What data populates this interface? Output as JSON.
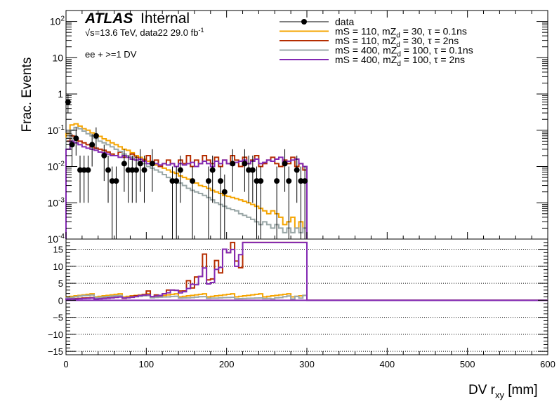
{
  "chart_data": {
    "type": "line",
    "label_atlas": "ATLAS",
    "label_internal": "Internal",
    "lumi_sqrt": "√s",
    "lumi_text": "=13.6 TeV, data22 29.0 fb",
    "lumi_exp": "-1",
    "selection": "ee + >=1 DV",
    "ylabel": "Frac. Events",
    "xlabel_main": "DV r",
    "xlabel_sub": "xy",
    "xlabel_unit": " [mm]",
    "xlim": [
      0,
      600
    ],
    "ylim_log": [
      0.0001,
      200
    ],
    "ratio_ylim": [
      -16,
      18
    ],
    "x_ticks": [
      "0",
      "100",
      "200",
      "300",
      "400",
      "500",
      "600"
    ],
    "y_ticks": [
      {
        "base": "10",
        "exp": "2"
      },
      {
        "base": "10",
        "exp": ""
      },
      {
        "base": "1",
        "exp": ""
      },
      {
        "base": "10",
        "exp": "-1"
      },
      {
        "base": "10",
        "exp": "-2"
      },
      {
        "base": "10",
        "exp": "-3"
      },
      {
        "base": "10",
        "exp": "-4"
      }
    ],
    "ratio_ticks": [
      "15",
      "10",
      "5",
      "0",
      "−5",
      "−10",
      "−15"
    ],
    "legend": [
      {
        "pre": "data",
        "sub": "",
        "post": "",
        "color": "#000000",
        "marker": "point"
      },
      {
        "pre": "mS = 110, mZ",
        "sub": "d",
        "post": " = 30, τ = 0.1ns",
        "color": "#f5a400",
        "marker": "line"
      },
      {
        "pre": "mS = 110, mZ",
        "sub": "d",
        "post": " = 30, τ = 2ns",
        "color": "#b52d00",
        "marker": "line"
      },
      {
        "pre": "mS = 400, mZ",
        "sub": "d",
        "post": " = 100, τ = 0.1ns",
        "color": "#9aa7a7",
        "marker": "line"
      },
      {
        "pre": "mS = 400, mZ",
        "sub": "d",
        "post": " = 100, τ = 2ns",
        "color": "#832ab3",
        "marker": "line"
      }
    ],
    "bin_width": 5,
    "data_points": [
      {
        "x": 2.5,
        "y": 0.6,
        "lo": 0.3,
        "hi": 1.0
      },
      {
        "x": 7.5,
        "y": 0.04,
        "lo": 0.01,
        "hi": 0.08
      },
      {
        "x": 12.5,
        "y": 0.06,
        "lo": 0.02,
        "hi": 0.12
      },
      {
        "x": 17.5,
        "y": 0.008,
        "lo": 0.001,
        "hi": 0.02
      },
      {
        "x": 22.5,
        "y": 0.008,
        "lo": 0.001,
        "hi": 0.02
      },
      {
        "x": 27.5,
        "y": 0.008,
        "lo": 0.001,
        "hi": 0.02
      },
      {
        "x": 32.5,
        "y": 0.04,
        "lo": 0.01,
        "hi": 0.08
      },
      {
        "x": 37.5,
        "y": 0.07,
        "lo": 0.03,
        "hi": 0.12
      },
      {
        "x": 47.5,
        "y": 0.02,
        "lo": 0.004,
        "hi": 0.04
      },
      {
        "x": 52.5,
        "y": 0.008,
        "lo": 0.001,
        "hi": 0.02
      },
      {
        "x": 57.5,
        "y": 0.004,
        "lo": 0.0001,
        "hi": 0.01
      },
      {
        "x": 62.5,
        "y": 0.004,
        "lo": 0.0001,
        "hi": 0.01
      },
      {
        "x": 72.5,
        "y": 0.012,
        "lo": 0.002,
        "hi": 0.03
      },
      {
        "x": 77.5,
        "y": 0.008,
        "lo": 0.001,
        "hi": 0.02
      },
      {
        "x": 82.5,
        "y": 0.008,
        "lo": 0.001,
        "hi": 0.02
      },
      {
        "x": 87.5,
        "y": 0.008,
        "lo": 0.001,
        "hi": 0.02
      },
      {
        "x": 92.5,
        "y": 0.012,
        "lo": 0.002,
        "hi": 0.03
      },
      {
        "x": 97.5,
        "y": 0.008,
        "lo": 0.001,
        "hi": 0.02
      },
      {
        "x": 107.5,
        "y": 0.012,
        "lo": 0.002,
        "hi": 0.03
      },
      {
        "x": 132.5,
        "y": 0.004,
        "lo": 0.0001,
        "hi": 0.01
      },
      {
        "x": 137.5,
        "y": 0.004,
        "lo": 0.0001,
        "hi": 0.01
      },
      {
        "x": 142.5,
        "y": 0.008,
        "lo": 0.001,
        "hi": 0.02
      },
      {
        "x": 157.5,
        "y": 0.004,
        "lo": 0.0001,
        "hi": 0.01
      },
      {
        "x": 177.5,
        "y": 0.004,
        "lo": 0.0001,
        "hi": 0.01
      },
      {
        "x": 182.5,
        "y": 0.008,
        "lo": 0.001,
        "hi": 0.02
      },
      {
        "x": 192.5,
        "y": 0.004,
        "lo": 0.0001,
        "hi": 0.01
      },
      {
        "x": 197.5,
        "y": 0.002,
        "lo": 0.0001,
        "hi": 0.006
      },
      {
        "x": 207.5,
        "y": 0.012,
        "lo": 0.002,
        "hi": 0.03
      },
      {
        "x": 222.5,
        "y": 0.012,
        "lo": 0.002,
        "hi": 0.03
      },
      {
        "x": 227.5,
        "y": 0.008,
        "lo": 0.001,
        "hi": 0.02
      },
      {
        "x": 232.5,
        "y": 0.008,
        "lo": 0.001,
        "hi": 0.02
      },
      {
        "x": 237.5,
        "y": 0.004,
        "lo": 0.0001,
        "hi": 0.01
      },
      {
        "x": 242.5,
        "y": 0.004,
        "lo": 0.0001,
        "hi": 0.01
      },
      {
        "x": 262.5,
        "y": 0.004,
        "lo": 0.0001,
        "hi": 0.01
      },
      {
        "x": 272.5,
        "y": 0.012,
        "lo": 0.002,
        "hi": 0.03
      },
      {
        "x": 277.5,
        "y": 0.004,
        "lo": 0.0001,
        "hi": 0.01
      },
      {
        "x": 287.5,
        "y": 0.008,
        "lo": 0.001,
        "hi": 0.02
      },
      {
        "x": 292.5,
        "y": 0.004,
        "lo": 0.0001,
        "hi": 0.01
      },
      {
        "x": 297.5,
        "y": 0.004,
        "lo": 0.0001,
        "hi": 0.01
      }
    ],
    "series": [
      {
        "name": "mS = 110, mZd = 30, τ = 0.1ns",
        "color": "#f5a400",
        "values": [
          0.08,
          0.14,
          0.15,
          0.13,
          0.11,
          0.1,
          0.085,
          0.075,
          0.068,
          0.058,
          0.052,
          0.045,
          0.04,
          0.035,
          0.03,
          0.028,
          0.024,
          0.02,
          0.018,
          0.016,
          0.014,
          0.012,
          0.011,
          0.01,
          0.009,
          0.008,
          0.007,
          0.0065,
          0.0055,
          0.005,
          0.0045,
          0.004,
          0.0035,
          0.003,
          0.0028,
          0.0025,
          0.0022,
          0.002,
          0.0018,
          0.0016,
          0.0015,
          0.0014,
          0.0013,
          0.0012,
          0.0011,
          0.001,
          0.0009,
          0.0008,
          0.0007,
          0.0006,
          0.0005,
          0.0006,
          0.0005,
          0.0004,
          0.00025,
          0.0003,
          0.0004,
          0.0002,
          0.0003,
          0.0002
        ]
      },
      {
        "name": "mS = 110, mZd = 30, τ = 2ns",
        "color": "#b52d00",
        "values": [
          0.05,
          0.07,
          0.06,
          0.05,
          0.045,
          0.04,
          0.035,
          0.032,
          0.03,
          0.028,
          0.025,
          0.022,
          0.02,
          0.025,
          0.018,
          0.02,
          0.022,
          0.018,
          0.016,
          0.015,
          0.02,
          0.012,
          0.015,
          0.01,
          0.012,
          0.015,
          0.012,
          0.01,
          0.015,
          0.012,
          0.02,
          0.01,
          0.015,
          0.012,
          0.02,
          0.015,
          0.012,
          0.018,
          0.01,
          0.015,
          0.012,
          0.02,
          0.015,
          0.01,
          0.018,
          0.012,
          0.015,
          0.02,
          0.01,
          0.012,
          0.015,
          0.018,
          0.012,
          0.01,
          0.015,
          0.012,
          0.018,
          0.01,
          0.012,
          0.008
        ]
      },
      {
        "name": "mS = 400, mZd = 100, τ = 0.1ns",
        "color": "#9aa7a7",
        "values": [
          0.06,
          0.1,
          0.12,
          0.11,
          0.095,
          0.08,
          0.07,
          0.06,
          0.05,
          0.045,
          0.04,
          0.035,
          0.03,
          0.026,
          0.022,
          0.02,
          0.018,
          0.015,
          0.013,
          0.012,
          0.01,
          0.009,
          0.008,
          0.007,
          0.006,
          0.005,
          0.0045,
          0.004,
          0.0035,
          0.003,
          0.0025,
          0.0022,
          0.002,
          0.0018,
          0.0016,
          0.0014,
          0.0012,
          0.001,
          0.0009,
          0.0008,
          0.0007,
          0.00065,
          0.0006,
          0.0005,
          0.00045,
          0.0004,
          0.00035,
          0.0003,
          0.00025,
          0.0003,
          0.00025,
          0.0002,
          0.00025,
          0.0002,
          0.00015,
          0.0002,
          0.00015,
          0.0002,
          0.00015,
          0.0002
        ]
      },
      {
        "name": "mS = 400, mZd = 100, τ = 2ns",
        "color": "#832ab3",
        "values": [
          0.03,
          0.05,
          0.045,
          0.04,
          0.035,
          0.032,
          0.03,
          0.028,
          0.025,
          0.024,
          0.022,
          0.02,
          0.02,
          0.018,
          0.02,
          0.018,
          0.016,
          0.015,
          0.016,
          0.014,
          0.012,
          0.013,
          0.012,
          0.011,
          0.012,
          0.011,
          0.012,
          0.01,
          0.012,
          0.011,
          0.012,
          0.013,
          0.01,
          0.012,
          0.014,
          0.012,
          0.01,
          0.014,
          0.012,
          0.015,
          0.012,
          0.011,
          0.013,
          0.014,
          0.015,
          0.012,
          0.014,
          0.016,
          0.012,
          0.013,
          0.015,
          0.014,
          0.016,
          0.018,
          0.012,
          0.014,
          0.015,
          0.016,
          0.012,
          0.01
        ]
      }
    ]
  }
}
